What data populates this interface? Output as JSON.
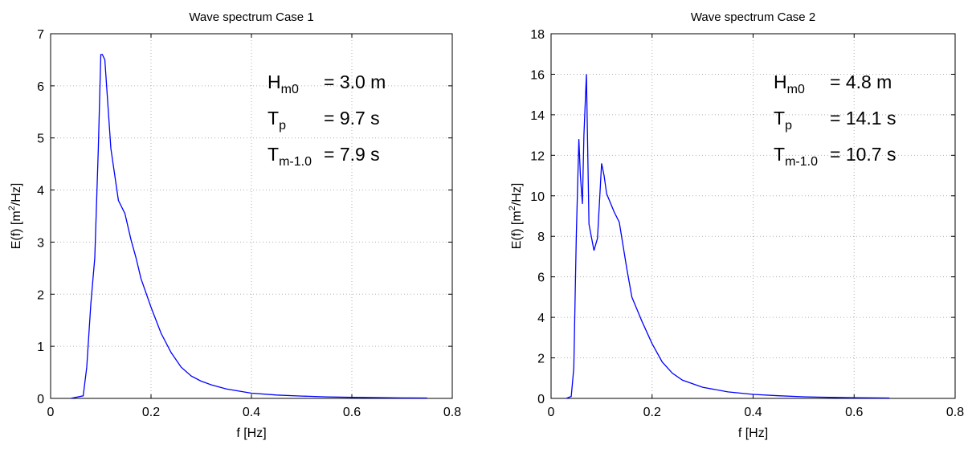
{
  "colors": {
    "series": "#0000ff",
    "axis": "#000000",
    "grid": "#b0b0b0"
  },
  "chart_data": [
    {
      "type": "line",
      "title": "Wave spectrum Case 1",
      "xlabel": "f [Hz]",
      "ylabel_base": "E(f) [m",
      "ylabel_sup": "2",
      "ylabel_tail": "/Hz]",
      "xlim": [
        0,
        0.8
      ],
      "ylim": [
        0,
        7
      ],
      "xticks": [
        0,
        0.2,
        0.4,
        0.6,
        0.8
      ],
      "xtick_labels": [
        "0",
        "0.2",
        "0.4",
        "0.6",
        "0.8"
      ],
      "yticks": [
        0,
        1,
        2,
        3,
        4,
        5,
        6,
        7
      ],
      "ytick_labels": [
        "0",
        "1",
        "2",
        "3",
        "4",
        "5",
        "6",
        "7"
      ],
      "grid": true,
      "series": [
        {
          "x": [
            0.04,
            0.065,
            0.072,
            0.08,
            0.088,
            0.095,
            0.1,
            0.103,
            0.108,
            0.12,
            0.135,
            0.148,
            0.16,
            0.17,
            0.18,
            0.2,
            0.22,
            0.24,
            0.26,
            0.28,
            0.3,
            0.32,
            0.35,
            0.4,
            0.45,
            0.5,
            0.55,
            0.6,
            0.65,
            0.7,
            0.75
          ],
          "y": [
            0,
            0.05,
            0.6,
            1.8,
            2.7,
            4.8,
            6.6,
            6.6,
            6.5,
            4.8,
            3.8,
            3.55,
            3.05,
            2.7,
            2.3,
            1.75,
            1.25,
            0.88,
            0.6,
            0.43,
            0.33,
            0.26,
            0.18,
            0.1,
            0.065,
            0.045,
            0.03,
            0.02,
            0.015,
            0.01,
            0.008
          ]
        }
      ],
      "annotations": [
        {
          "main": "H",
          "sub": "m0",
          "value": "= 3.0 m"
        },
        {
          "main": "T",
          "sub": "p",
          "value": "= 9.7 s"
        },
        {
          "main": "T",
          "sub": "m-1.0",
          "value": "= 7.9 s"
        }
      ]
    },
    {
      "type": "line",
      "title": "Wave spectrum Case 2",
      "xlabel": "f [Hz]",
      "ylabel_base": "E(f) [m",
      "ylabel_sup": "2",
      "ylabel_tail": "/Hz]",
      "xlim": [
        0,
        0.8
      ],
      "ylim": [
        0,
        18
      ],
      "xticks": [
        0,
        0.2,
        0.4,
        0.6,
        0.8
      ],
      "xtick_labels": [
        "0",
        "0.2",
        "0.4",
        "0.6",
        "0.8"
      ],
      "yticks": [
        0,
        2,
        4,
        6,
        8,
        10,
        12,
        14,
        16,
        18
      ],
      "ytick_labels": [
        "0",
        "2",
        "4",
        "6",
        "8",
        "10",
        "12",
        "14",
        "16",
        "18"
      ],
      "grid": true,
      "series": [
        {
          "x": [
            0.03,
            0.04,
            0.045,
            0.05,
            0.055,
            0.058,
            0.062,
            0.065,
            0.07,
            0.075,
            0.085,
            0.092,
            0.1,
            0.105,
            0.11,
            0.125,
            0.135,
            0.15,
            0.16,
            0.18,
            0.2,
            0.22,
            0.24,
            0.26,
            0.3,
            0.35,
            0.4,
            0.45,
            0.5,
            0.55,
            0.6,
            0.67
          ],
          "y": [
            0,
            0.1,
            1.5,
            8.0,
            12.8,
            11.0,
            9.6,
            13.0,
            16.0,
            8.6,
            7.3,
            7.9,
            11.6,
            11.0,
            10.1,
            9.2,
            8.7,
            6.4,
            5.0,
            3.8,
            2.7,
            1.8,
            1.25,
            0.9,
            0.55,
            0.32,
            0.2,
            0.13,
            0.08,
            0.05,
            0.03,
            0.02
          ]
        }
      ],
      "annotations": [
        {
          "main": "H",
          "sub": "m0",
          "value": "= 4.8 m"
        },
        {
          "main": "T",
          "sub": "p",
          "value": "= 14.1 s"
        },
        {
          "main": "T",
          "sub": "m-1.0",
          "value": "= 10.7 s"
        }
      ]
    }
  ]
}
